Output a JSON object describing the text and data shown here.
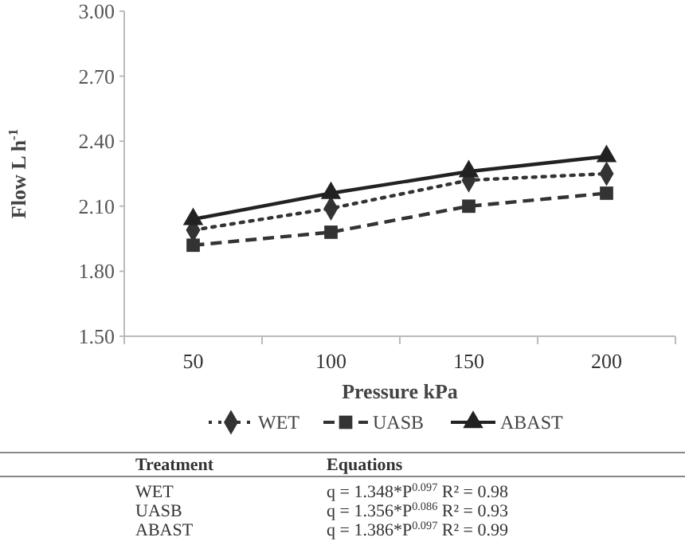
{
  "chart_data": {
    "type": "line",
    "categories": [
      "50",
      "100",
      "150",
      "200"
    ],
    "xlabel": "Pressure  kPa",
    "ylabel": "Flow  L h$^{-1}$",
    "ylim": [
      1.5,
      3.0
    ],
    "yticks": [
      {
        "value": 1.5,
        "label": "1.50"
      },
      {
        "value": 1.8,
        "label": "1.80"
      },
      {
        "value": 2.1,
        "label": "2.10"
      },
      {
        "value": 2.4,
        "label": "2.40"
      },
      {
        "value": 2.7,
        "label": "2.70"
      },
      {
        "value": 3.0,
        "label": "3.00"
      }
    ],
    "grid": false,
    "legend": "bottom",
    "series": [
      {
        "name": "WET",
        "color": "#333333",
        "values": [
          1.99,
          2.09,
          2.22,
          2.25
        ],
        "marker": "diamond",
        "line_style": "dotted"
      },
      {
        "name": "UASB",
        "color": "#333333",
        "values": [
          1.92,
          1.98,
          2.1,
          2.16
        ],
        "marker": "square",
        "line_style": "dashed"
      },
      {
        "name": "ABAST",
        "color": "#222222",
        "values": [
          2.04,
          2.16,
          2.26,
          2.33
        ],
        "marker": "triangle",
        "line_style": "solid"
      }
    ],
    "annotations": [
      "Treatment",
      "Equations",
      "WET",
      "q = 1.348*P$^{0.097}$ R² = 0.98",
      "UASB",
      "q = 1.356*P$^{0.086}$ R² = 0.93",
      "ABAST",
      "q = 1.386*P$^{0.097}$ R² = 0.99"
    ]
  }
}
